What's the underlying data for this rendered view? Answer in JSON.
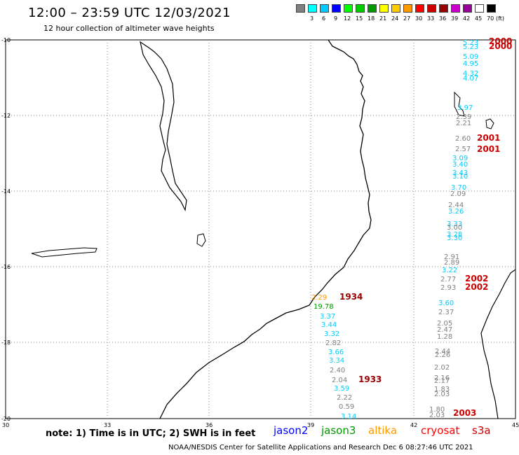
{
  "header": {
    "title": "12:00 – 23:59 UTC 12/03/2021",
    "subtitle": "12 hour collection of altimeter wave heights"
  },
  "legend": {
    "unit": "(ft)",
    "swatches": [
      {
        "color": "#808080",
        "label": ""
      },
      {
        "color": "#00ffff",
        "label": "3"
      },
      {
        "color": "#00ccff",
        "label": "6"
      },
      {
        "color": "#0000ff",
        "label": "9"
      },
      {
        "color": "#00ff00",
        "label": "12"
      },
      {
        "color": "#00cc00",
        "label": "15"
      },
      {
        "color": "#009900",
        "label": "18"
      },
      {
        "color": "#ffff00",
        "label": "21"
      },
      {
        "color": "#ffcc00",
        "label": "24"
      },
      {
        "color": "#ff9900",
        "label": "27"
      },
      {
        "color": "#ff0000",
        "label": "30"
      },
      {
        "color": "#cc0000",
        "label": "33"
      },
      {
        "color": "#990000",
        "label": "36"
      },
      {
        "color": "#cc00cc",
        "label": "39"
      },
      {
        "color": "#990099",
        "label": "42"
      },
      {
        "color": "#ffffff",
        "label": "45"
      },
      {
        "color": "#000000",
        "label": "70"
      }
    ]
  },
  "map": {
    "lat_labels": [
      "-10",
      "-12",
      "-14",
      "-16",
      "-18",
      "-20"
    ],
    "lon_labels": [
      "30",
      "33",
      "36",
      "39",
      "42",
      "45"
    ],
    "observations": [
      {
        "v": "5.23",
        "color": "#00ccff"
      },
      {
        "v": "2000",
        "color": "#cc0000",
        "bold": true
      },
      {
        "v": "5.23",
        "color": "#00ccff"
      },
      {
        "v": "2000",
        "color": "#cc0000",
        "bold": true
      },
      {
        "v": "5.09",
        "color": "#00ccff"
      },
      {
        "v": "4.95",
        "color": "#00ccff"
      },
      {
        "v": "4.32",
        "color": "#00ccff"
      },
      {
        "v": "4.07",
        "color": "#00ccff"
      },
      {
        "v": "3.97",
        "color": "#00ccff"
      },
      {
        "v": "2.39",
        "color": "#808080"
      },
      {
        "v": "2.21",
        "color": "#808080"
      },
      {
        "v": "2.60",
        "color": "#808080"
      },
      {
        "v": "2001",
        "color": "#cc0000",
        "bold": true
      },
      {
        "v": "2.57",
        "color": "#808080"
      },
      {
        "v": "2001",
        "color": "#cc0000",
        "bold": true
      },
      {
        "v": "3.09",
        "color": "#00ccff"
      },
      {
        "v": "3.40",
        "color": "#00ccff"
      },
      {
        "v": "3.43",
        "color": "#00ccff"
      },
      {
        "v": "3.10",
        "color": "#00ccff"
      },
      {
        "v": "3.70",
        "color": "#00ccff"
      },
      {
        "v": "2.09",
        "color": "#808080"
      },
      {
        "v": "2.44",
        "color": "#808080"
      },
      {
        "v": "3.26",
        "color": "#00ccff"
      },
      {
        "v": "3.33",
        "color": "#00ccff"
      },
      {
        "v": "3.00",
        "color": "#808080"
      },
      {
        "v": "3.28",
        "color": "#00ccff"
      },
      {
        "v": "3.30",
        "color": "#00ccff"
      },
      {
        "v": "2.91",
        "color": "#808080"
      },
      {
        "v": "2.89",
        "color": "#808080"
      },
      {
        "v": "3.22",
        "color": "#00ccff"
      },
      {
        "v": "2.77",
        "color": "#808080"
      },
      {
        "v": "2002",
        "color": "#cc0000",
        "bold": true
      },
      {
        "v": "2.93",
        "color": "#808080"
      },
      {
        "v": "2002",
        "color": "#cc0000",
        "bold": true
      },
      {
        "v": "3.60",
        "color": "#00ccff"
      },
      {
        "v": "2.37",
        "color": "#808080"
      },
      {
        "v": "2.05",
        "color": "#808080"
      },
      {
        "v": "2.47",
        "color": "#808080"
      },
      {
        "v": "1.28",
        "color": "#808080"
      },
      {
        "v": "2.44",
        "color": "#808080"
      },
      {
        "v": "2.26",
        "color": "#808080"
      },
      {
        "v": "2.02",
        "color": "#808080"
      },
      {
        "v": "2.16",
        "color": "#808080"
      },
      {
        "v": "2.17",
        "color": "#808080"
      },
      {
        "v": "1.83",
        "color": "#808080"
      },
      {
        "v": "2.03",
        "color": "#808080"
      },
      {
        "v": "1.80",
        "color": "#808080"
      },
      {
        "v": "2.03",
        "color": "#808080"
      },
      {
        "v": "2003",
        "color": "#cc0000",
        "bold": true
      },
      {
        "v": "2.29",
        "color": "#ff9900"
      },
      {
        "v": "1934",
        "color": "#990000",
        "bold": true
      },
      {
        "v": "19.78",
        "color": "#009900"
      },
      {
        "v": "3.37",
        "color": "#00ccff"
      },
      {
        "v": "3.44",
        "color": "#00ccff"
      },
      {
        "v": "3.32",
        "color": "#00ccff"
      },
      {
        "v": "2.82",
        "color": "#808080"
      },
      {
        "v": "3.66",
        "color": "#00ccff"
      },
      {
        "v": "3.34",
        "color": "#00ccff"
      },
      {
        "v": "2.40",
        "color": "#808080"
      },
      {
        "v": "2.04",
        "color": "#808080"
      },
      {
        "v": "1933",
        "color": "#990000",
        "bold": true
      },
      {
        "v": "3.59",
        "color": "#00ccff"
      },
      {
        "v": "2.22",
        "color": "#808080"
      },
      {
        "v": "0.59",
        "color": "#808080"
      },
      {
        "v": "3.14",
        "color": "#00ccff"
      }
    ]
  },
  "note": "note: 1) Time is in UTC; 2) SWH is in feet",
  "satellites": [
    {
      "name": "jason2",
      "color": "#0000ff"
    },
    {
      "name": "jason3",
      "color": "#009900"
    },
    {
      "name": "altika",
      "color": "#ff9900"
    },
    {
      "name": "cryosat",
      "color": "#ff0000"
    },
    {
      "name": "s3a",
      "color": "#cc0000"
    }
  ],
  "footer": "NOAA/NESDIS Center for Satellite Applications and Research    Dec  6 08:27:46 UTC 2021"
}
